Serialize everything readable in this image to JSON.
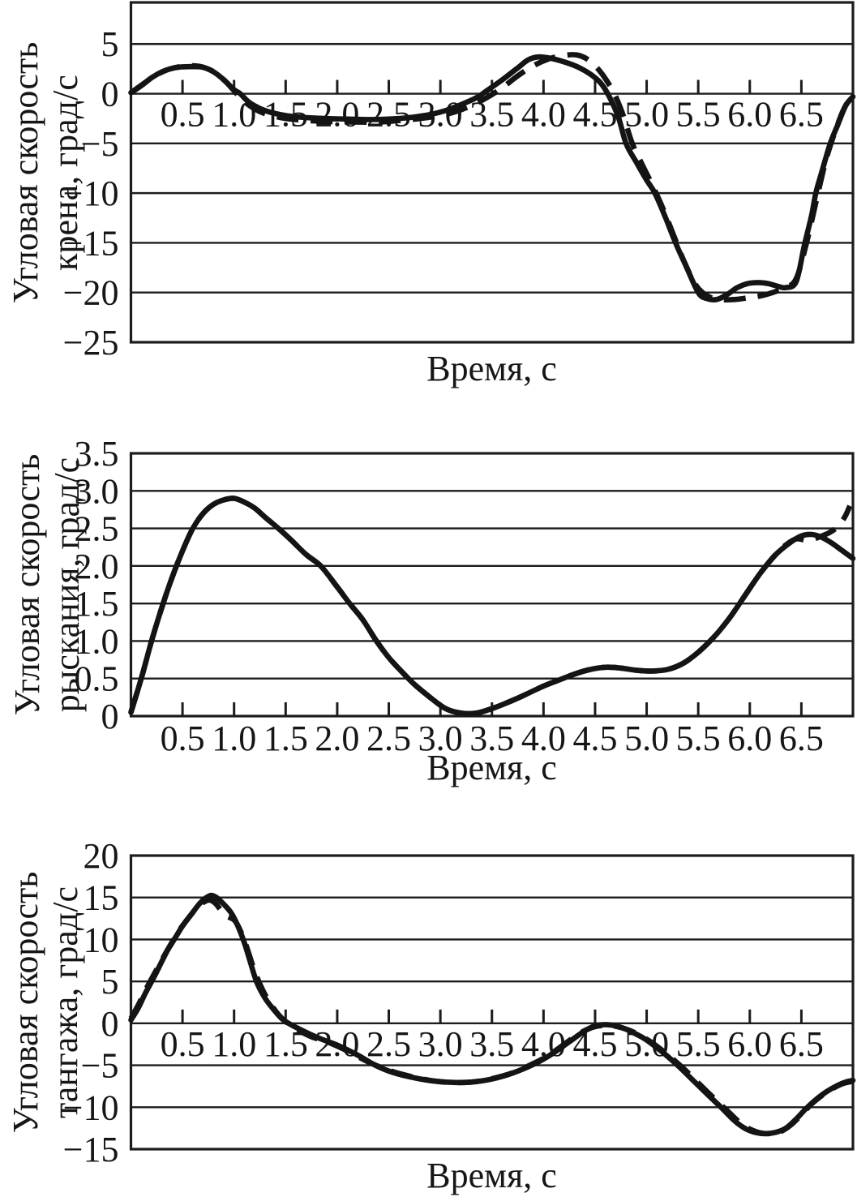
{
  "figure": {
    "background_color": "#ffffff",
    "ink_color": "#161616",
    "description_units": "град/с vs с"
  },
  "chart_data": [
    {
      "id": "roll-rate",
      "type": "line",
      "title": "",
      "ylabel": "Угловая скорость крена, град/с",
      "ylabel_lines": [
        "Угловая скорость",
        "крена, град/с"
      ],
      "xlabel": "Время, с",
      "xlim": [
        0,
        7
      ],
      "ylim": [
        -25,
        9.18
      ],
      "x_axis_value": 0,
      "grid": "horizontal",
      "legend": "none",
      "x_ticks": [
        0.5,
        1.0,
        1.5,
        2.0,
        2.5,
        3.0,
        3.5,
        4.0,
        4.5,
        5.0,
        5.5,
        6.0,
        6.5
      ],
      "x_tick_labels": [
        "0.5",
        "1.0",
        "1.5",
        "2.0",
        "2.5",
        "3.0",
        "3.5",
        "4.0",
        "4.5",
        "5.0",
        "5.5",
        "6.0",
        "6.5"
      ],
      "y_ticks": [
        5,
        0,
        -5,
        -10,
        -15,
        -20,
        -25
      ],
      "y_tick_labels": [
        "5",
        "0",
        "−5",
        "−10",
        "−15",
        "−20",
        "−25"
      ],
      "series": [
        {
          "name": "solid-curve",
          "style": "solid",
          "x": [
            0,
            0.1,
            0.2,
            0.3,
            0.4,
            0.5,
            0.6,
            0.7,
            0.8,
            0.9,
            1.0,
            1.06,
            1.15,
            1.3,
            1.5,
            1.7,
            1.9,
            2.1,
            2.3,
            2.5,
            2.7,
            2.9,
            3.05,
            3.2,
            3.35,
            3.45,
            3.6,
            3.75,
            3.85,
            3.95,
            4.05,
            4.2,
            4.35,
            4.5,
            4.6,
            4.72,
            4.8,
            4.9,
            5.0,
            5.08,
            5.18,
            5.28,
            5.38,
            5.5,
            5.58,
            5.68,
            5.78,
            5.88,
            5.98,
            6.08,
            6.18,
            6.28,
            6.35,
            6.45,
            6.53,
            6.6,
            6.64,
            6.7,
            6.78,
            6.85,
            6.93,
            7.0
          ],
          "y": [
            0.1,
            0.8,
            1.6,
            2.2,
            2.55,
            2.7,
            2.72,
            2.65,
            2.2,
            1.4,
            0.4,
            0,
            -0.9,
            -1.7,
            -2.2,
            -2.4,
            -2.5,
            -2.55,
            -2.6,
            -2.55,
            -2.4,
            -2.1,
            -1.7,
            -1.1,
            -0.4,
            0.3,
            1.4,
            2.6,
            3.4,
            3.7,
            3.6,
            3.2,
            2.6,
            1.6,
            0.4,
            -2.2,
            -5.0,
            -6.9,
            -8.7,
            -10.0,
            -12.4,
            -15.0,
            -17.3,
            -20.0,
            -20.6,
            -20.7,
            -20.2,
            -19.5,
            -19.1,
            -19.0,
            -19.1,
            -19.4,
            -19.5,
            -18.9,
            -15.2,
            -12.2,
            -10.0,
            -7.8,
            -5.0,
            -3.2,
            -1.2,
            -0.3
          ]
        },
        {
          "name": "dashed-curve",
          "style": "dashed",
          "x": [
            0,
            0.12,
            0.25,
            0.38,
            0.5,
            0.62,
            0.72,
            0.82,
            0.92,
            1.0,
            1.1,
            1.25,
            1.45,
            1.65,
            1.9,
            2.15,
            2.4,
            2.6,
            2.8,
            3.0,
            3.15,
            3.3,
            3.45,
            3.6,
            3.75,
            3.9,
            4.05,
            4.2,
            4.32,
            4.42,
            4.52,
            4.62,
            4.7,
            4.78,
            4.86,
            4.96,
            5.06,
            5.16,
            5.26,
            5.36,
            5.48,
            5.6,
            5.72,
            5.85,
            6.0,
            6.12,
            6.25,
            6.35,
            6.45,
            6.55,
            6.65,
            6.73,
            6.8,
            6.9,
            6.98
          ],
          "y": [
            0.1,
            1.0,
            1.9,
            2.5,
            2.75,
            2.8,
            2.6,
            2.1,
            1.2,
            0.3,
            -0.8,
            -1.8,
            -2.4,
            -2.65,
            -2.8,
            -2.85,
            -2.85,
            -2.7,
            -2.5,
            -2.2,
            -1.8,
            -1.2,
            -0.4,
            0.6,
            1.8,
            2.8,
            3.5,
            3.85,
            3.9,
            3.5,
            2.6,
            1.2,
            -0.3,
            -2.4,
            -5.0,
            -7.2,
            -9.3,
            -11.6,
            -14.2,
            -16.8,
            -19.3,
            -20.4,
            -20.7,
            -20.7,
            -20.5,
            -20.3,
            -19.9,
            -19.5,
            -18.6,
            -15.0,
            -10.5,
            -7.0,
            -4.6,
            -1.8,
            -0.3
          ]
        }
      ]
    },
    {
      "id": "yaw-rate",
      "type": "line",
      "title": "",
      "ylabel": "Угловая скорость рыскания, град/с",
      "ylabel_lines": [
        "Угловая скорость",
        "рыскания, град/с"
      ],
      "xlabel": "Время, с",
      "xlim": [
        0,
        7
      ],
      "ylim": [
        0,
        3.5
      ],
      "x_axis_value": 0,
      "grid": "horizontal",
      "legend": "none",
      "x_ticks": [
        0.5,
        1.0,
        1.5,
        2.0,
        2.5,
        3.0,
        3.5,
        4.0,
        4.5,
        5.0,
        5.5,
        6.0,
        6.5
      ],
      "x_tick_labels": [
        "0.5",
        "1.0",
        "1.5",
        "2.0",
        "2.5",
        "3.0",
        "3.5",
        "4.0",
        "4.5",
        "5.0",
        "5.5",
        "6.0",
        "6.5"
      ],
      "y_ticks": [
        3.5,
        3.0,
        2.5,
        2.0,
        1.5,
        1.0,
        0.5,
        0
      ],
      "y_tick_labels": [
        "3.5",
        "3.0",
        "2.5",
        "2.0",
        "1.5",
        "1.0",
        "0.5",
        "0"
      ],
      "series": [
        {
          "name": "solid-curve",
          "style": "solid",
          "x": [
            0,
            0.1,
            0.2,
            0.3,
            0.4,
            0.5,
            0.6,
            0.7,
            0.8,
            0.9,
            1.0,
            1.1,
            1.2,
            1.3,
            1.43,
            1.55,
            1.7,
            1.84,
            2.0,
            2.12,
            2.25,
            2.38,
            2.5,
            2.62,
            2.75,
            2.9,
            3.05,
            3.2,
            3.35,
            3.5,
            3.65,
            3.8,
            4.0,
            4.15,
            4.3,
            4.45,
            4.6,
            4.75,
            4.9,
            5.05,
            5.2,
            5.35,
            5.5,
            5.65,
            5.8,
            5.95,
            6.1,
            6.25,
            6.4,
            6.5,
            6.6,
            6.7,
            6.8,
            6.9,
            7.0
          ],
          "y": [
            0.05,
            0.5,
            1.0,
            1.45,
            1.85,
            2.2,
            2.5,
            2.7,
            2.82,
            2.88,
            2.9,
            2.85,
            2.77,
            2.65,
            2.5,
            2.35,
            2.15,
            2.0,
            1.72,
            1.5,
            1.28,
            1.0,
            0.78,
            0.6,
            0.42,
            0.25,
            0.1,
            0.04,
            0.04,
            0.1,
            0.18,
            0.27,
            0.4,
            0.48,
            0.56,
            0.62,
            0.65,
            0.64,
            0.61,
            0.6,
            0.62,
            0.7,
            0.85,
            1.05,
            1.3,
            1.6,
            1.9,
            2.15,
            2.32,
            2.4,
            2.42,
            2.38,
            2.3,
            2.2,
            2.1
          ]
        },
        {
          "name": "dashed-curve",
          "style": "dashed",
          "x": [
            0,
            0.1,
            0.2,
            0.3,
            0.4,
            0.5,
            0.6,
            0.7,
            0.8,
            0.9,
            1.0,
            1.1,
            1.2,
            1.3,
            1.43,
            1.55,
            1.7,
            1.84,
            2.0,
            2.12,
            2.25,
            2.38,
            2.5,
            2.62,
            2.75,
            2.9,
            3.05,
            3.2,
            3.35,
            3.5,
            3.65,
            3.8,
            4.0,
            4.15,
            4.3,
            4.45,
            4.6,
            4.75,
            4.9,
            5.05,
            5.2,
            5.35,
            5.5,
            5.65,
            5.8,
            5.95,
            6.1,
            6.25,
            6.35,
            6.45,
            6.55,
            6.62,
            6.7,
            6.78,
            6.85,
            6.92,
            6.97
          ],
          "y": [
            0.05,
            0.5,
            1.0,
            1.45,
            1.85,
            2.2,
            2.5,
            2.7,
            2.82,
            2.88,
            2.9,
            2.85,
            2.77,
            2.65,
            2.5,
            2.35,
            2.15,
            2.0,
            1.72,
            1.5,
            1.28,
            1.0,
            0.78,
            0.6,
            0.42,
            0.25,
            0.1,
            0.04,
            0.04,
            0.1,
            0.18,
            0.27,
            0.4,
            0.48,
            0.56,
            0.62,
            0.65,
            0.64,
            0.61,
            0.6,
            0.62,
            0.7,
            0.85,
            1.05,
            1.3,
            1.6,
            1.9,
            2.15,
            2.28,
            2.36,
            2.34,
            2.36,
            2.4,
            2.45,
            2.52,
            2.65,
            2.8
          ]
        }
      ]
    },
    {
      "id": "pitch-rate",
      "type": "line",
      "title": "",
      "ylabel": "Угловая скорость тангажа, град/с",
      "ylabel_lines": [
        "Угловая скорость",
        "тангажа, град/с"
      ],
      "xlabel": "Время, с",
      "xlim": [
        0,
        7
      ],
      "ylim": [
        -15,
        20
      ],
      "x_axis_value": 0,
      "grid": "horizontal",
      "legend": "none",
      "x_ticks": [
        0.5,
        1.0,
        1.5,
        2.0,
        2.5,
        3.0,
        3.5,
        4.0,
        4.5,
        5.0,
        5.5,
        6.0,
        6.5
      ],
      "x_tick_labels": [
        "0.5",
        "1.0",
        "1.5",
        "2.0",
        "2.5",
        "3.0",
        "3.5",
        "4.0",
        "4.5",
        "5.0",
        "5.5",
        "6.0",
        "6.5"
      ],
      "y_ticks": [
        20,
        15,
        10,
        5,
        0,
        -5,
        -10,
        -15
      ],
      "y_tick_labels": [
        "20",
        "15",
        "10",
        "5",
        "0",
        "−5",
        "−10",
        "−15"
      ],
      "series": [
        {
          "name": "solid-curve",
          "style": "solid",
          "x": [
            0,
            0.07,
            0.14,
            0.21,
            0.28,
            0.35,
            0.42,
            0.5,
            0.58,
            0.66,
            0.72,
            0.78,
            0.84,
            0.9,
            0.97,
            1.03,
            1.1,
            1.16,
            1.22,
            1.3,
            1.38,
            1.46,
            1.53,
            1.62,
            1.72,
            1.85,
            2.0,
            2.2,
            2.37,
            2.55,
            2.75,
            2.95,
            3.15,
            3.35,
            3.55,
            3.75,
            3.95,
            4.1,
            4.25,
            4.4,
            4.5,
            4.6,
            4.7,
            4.8,
            4.9,
            5.0,
            5.15,
            5.3,
            5.45,
            5.6,
            5.72,
            5.85,
            5.95,
            6.05,
            6.15,
            6.25,
            6.35,
            6.45,
            6.55,
            6.65,
            6.75,
            6.85,
            6.93,
            7.0
          ],
          "y": [
            0.4,
            1.8,
            3.6,
            5.2,
            6.9,
            8.6,
            10.0,
            11.6,
            12.9,
            14.2,
            14.9,
            15.25,
            14.9,
            14.2,
            13.2,
            11.8,
            9.6,
            7.2,
            4.9,
            3.0,
            1.7,
            0.6,
            0,
            -0.6,
            -1.2,
            -1.9,
            -2.6,
            -3.8,
            -5.0,
            -5.9,
            -6.5,
            -6.9,
            -7.05,
            -6.95,
            -6.5,
            -5.7,
            -4.6,
            -3.5,
            -2.2,
            -0.9,
            -0.3,
            -0.15,
            -0.3,
            -0.7,
            -1.3,
            -2.0,
            -3.4,
            -5.0,
            -6.8,
            -8.6,
            -10.0,
            -11.6,
            -12.5,
            -13.0,
            -13.15,
            -13.0,
            -12.5,
            -11.4,
            -10.1,
            -9.0,
            -8.1,
            -7.4,
            -7.0,
            -6.8
          ]
        },
        {
          "name": "dashed-curve",
          "style": "dashed",
          "x": [
            0,
            0.08,
            0.16,
            0.24,
            0.32,
            0.4,
            0.48,
            0.56,
            0.64,
            0.7,
            0.76,
            0.82,
            0.87,
            0.91,
            0.96,
            1.01,
            1.07,
            1.13,
            1.2,
            1.28,
            1.36,
            1.44,
            1.52,
            1.62,
            1.75,
            1.9,
            2.1,
            2.3,
            2.5,
            2.7,
            2.9,
            3.1,
            3.3,
            3.5,
            3.7,
            3.9,
            4.05,
            4.2,
            4.35,
            4.47,
            4.57,
            4.67,
            4.78,
            4.9,
            5.05,
            5.2,
            5.35,
            5.5,
            5.65,
            5.78,
            5.9,
            6.0,
            6.1,
            6.2,
            6.3,
            6.4,
            6.5,
            6.6,
            6.7,
            6.8,
            6.9,
            7.0
          ],
          "y": [
            0.6,
            2.4,
            4.4,
            6.2,
            8.0,
            9.7,
            11.3,
            12.6,
            13.8,
            14.4,
            14.7,
            14.3,
            13.5,
            12.9,
            12.6,
            12.2,
            10.8,
            8.8,
            6.2,
            3.9,
            2.2,
            0.9,
            0,
            -0.8,
            -1.6,
            -2.2,
            -3.3,
            -4.6,
            -5.6,
            -6.3,
            -6.8,
            -7.05,
            -7.0,
            -6.6,
            -5.9,
            -4.8,
            -3.8,
            -2.5,
            -1.2,
            -0.5,
            -0.25,
            -0.3,
            -0.6,
            -1.2,
            -2.3,
            -3.7,
            -5.3,
            -7.1,
            -8.9,
            -10.4,
            -11.8,
            -12.6,
            -13.05,
            -13.15,
            -12.9,
            -12.1,
            -10.9,
            -9.6,
            -8.6,
            -7.8,
            -7.2,
            -6.9
          ]
        }
      ]
    }
  ]
}
